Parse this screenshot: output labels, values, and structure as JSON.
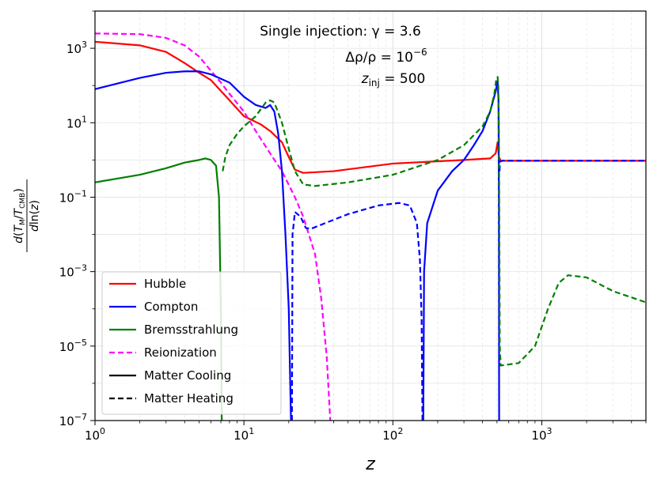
{
  "chart_data": {
    "type": "line",
    "xscale": "log",
    "yscale": "log",
    "xlim": [
      1,
      5000
    ],
    "ylim": [
      1e-07,
      10000
    ],
    "xlabel": "z",
    "ylabel": "d(T_M/T_CMB) / d ln(z)",
    "x_ticks": [
      {
        "value": 1,
        "base": "10",
        "exp": "0"
      },
      {
        "value": 10,
        "base": "10",
        "exp": "1"
      },
      {
        "value": 100,
        "base": "10",
        "exp": "2"
      },
      {
        "value": 1000,
        "base": "10",
        "exp": "3"
      }
    ],
    "y_ticks": [
      {
        "value": 1e-07,
        "base": "10",
        "exp": "−7"
      },
      {
        "value": 1e-05,
        "base": "10",
        "exp": "−5"
      },
      {
        "value": 0.001,
        "base": "10",
        "exp": "−3"
      },
      {
        "value": 0.1,
        "base": "10",
        "exp": "−1"
      },
      {
        "value": 10,
        "base": "10",
        "exp": "1"
      },
      {
        "value": 1000,
        "base": "10",
        "exp": "3"
      }
    ],
    "annotations": {
      "line1": "Single injection: γ = 3.6",
      "line2_a": "Δρ/ρ = 10",
      "line2_exp": "−6",
      "line3_a": "z",
      "line3_sub": "inj",
      "line3_b": " = 500"
    },
    "colors": {
      "hubble": "#ff0000",
      "compton": "#0000ff",
      "brems": "#008000",
      "reion": "#ff00ff",
      "black": "#000000"
    },
    "legend": {
      "location": "lower-left",
      "entries": [
        {
          "label": "Hubble",
          "color": "#ff0000",
          "style": "solid"
        },
        {
          "label": "Compton",
          "color": "#0000ff",
          "style": "solid"
        },
        {
          "label": "Bremsstrahlung",
          "color": "#008000",
          "style": "solid"
        },
        {
          "label": "Reionization",
          "color": "#ff00ff",
          "style": "dashed"
        },
        {
          "label": "Matter Cooling",
          "color": "#000000",
          "style": "solid"
        },
        {
          "label": "Matter Heating",
          "color": "#000000",
          "style": "dashed"
        }
      ]
    },
    "series": [
      {
        "name": "Hubble",
        "color": "#ff0000",
        "dash": false,
        "points": [
          [
            1,
            1500
          ],
          [
            2,
            1200
          ],
          [
            3,
            800
          ],
          [
            4,
            400
          ],
          [
            5,
            220
          ],
          [
            6,
            140
          ],
          [
            8,
            40
          ],
          [
            10,
            15
          ],
          [
            13,
            9
          ],
          [
            15,
            6
          ],
          [
            18,
            3
          ],
          [
            20,
            1.2
          ],
          [
            22,
            0.55
          ],
          [
            25,
            0.45
          ],
          [
            40,
            0.5
          ],
          [
            100,
            0.8
          ],
          [
            300,
            1.0
          ],
          [
            450,
            1.1
          ],
          [
            490,
            1.5
          ],
          [
            505,
            3.0
          ],
          [
            515,
            1.2
          ],
          [
            530,
            0.95
          ],
          [
            5000,
            0.95
          ]
        ]
      },
      {
        "name": "Reionization",
        "color": "#ff00ff",
        "dash": true,
        "points": [
          [
            1,
            2500
          ],
          [
            2,
            2400
          ],
          [
            3,
            1900
          ],
          [
            4,
            1200
          ],
          [
            5,
            600
          ],
          [
            6,
            250
          ],
          [
            7,
            120
          ],
          [
            8,
            60
          ],
          [
            10,
            20
          ],
          [
            12,
            6
          ],
          [
            15,
            1.5
          ],
          [
            18,
            0.5
          ],
          [
            22,
            0.1
          ],
          [
            25,
            0.03
          ],
          [
            30,
            0.003
          ],
          [
            33,
            0.0002
          ],
          [
            36,
            5e-06
          ],
          [
            38,
            1e-07
          ]
        ]
      },
      {
        "name": "Compton cooling early",
        "color": "#0000ff",
        "dash": false,
        "points": [
          [
            1,
            80
          ],
          [
            2,
            160
          ],
          [
            3,
            220
          ],
          [
            4,
            240
          ],
          [
            5,
            240
          ],
          [
            6,
            200
          ],
          [
            8,
            120
          ],
          [
            10,
            50
          ],
          [
            12,
            30
          ],
          [
            14,
            25
          ],
          [
            15,
            30
          ],
          [
            16,
            20
          ],
          [
            17,
            5
          ],
          [
            18,
            0.5
          ],
          [
            19,
            0.01
          ],
          [
            20,
            0.0001
          ],
          [
            20.7,
            1e-07
          ]
        ]
      },
      {
        "name": "Compton heating",
        "color": "#0000ff",
        "dash": true,
        "points": [
          [
            21,
            1e-07
          ],
          [
            21.2,
            0.01
          ],
          [
            22,
            0.04
          ],
          [
            24,
            0.03
          ],
          [
            26,
            0.015
          ],
          [
            28,
            0.014
          ],
          [
            35,
            0.02
          ],
          [
            50,
            0.035
          ],
          [
            80,
            0.06
          ],
          [
            110,
            0.07
          ],
          [
            130,
            0.06
          ],
          [
            145,
            0.02
          ],
          [
            152,
            0.002
          ],
          [
            156,
            5e-05
          ],
          [
            158,
            1e-07
          ]
        ]
      },
      {
        "name": "Compton cooling late",
        "color": "#0000ff",
        "dash": false,
        "points": [
          [
            160,
            1e-07
          ],
          [
            162,
            0.001
          ],
          [
            170,
            0.02
          ],
          [
            200,
            0.15
          ],
          [
            250,
            0.5
          ],
          [
            300,
            1.0
          ],
          [
            350,
            2.5
          ],
          [
            400,
            6
          ],
          [
            450,
            20
          ],
          [
            490,
            70
          ],
          [
            505,
            130
          ],
          [
            512,
            40
          ],
          [
            515,
            0.1
          ],
          [
            517,
            1e-07
          ]
        ]
      },
      {
        "name": "Compton heating tail",
        "color": "#0000ff",
        "dash": true,
        "points": [
          [
            520,
            0.5
          ],
          [
            525,
            0.9
          ],
          [
            540,
            0.95
          ],
          [
            5000,
            0.95
          ]
        ]
      },
      {
        "name": "Bremsstrahlung cooling",
        "color": "#008000",
        "dash": false,
        "points": [
          [
            1,
            0.25
          ],
          [
            2,
            0.4
          ],
          [
            3,
            0.6
          ],
          [
            4,
            0.85
          ],
          [
            5,
            1.0
          ],
          [
            5.5,
            1.1
          ],
          [
            6,
            1.0
          ],
          [
            6.5,
            0.7
          ],
          [
            6.8,
            0.1
          ],
          [
            7,
            0.0001
          ],
          [
            7.1,
            1e-07
          ]
        ]
      },
      {
        "name": "Bremsstrahlung heating",
        "color": "#008000",
        "dash": true,
        "points": [
          [
            7.2,
            0.5
          ],
          [
            7.5,
            1.2
          ],
          [
            8,
            2.5
          ],
          [
            9,
            5
          ],
          [
            10,
            8
          ],
          [
            12,
            15
          ],
          [
            14,
            35
          ],
          [
            15,
            40
          ],
          [
            16,
            35
          ],
          [
            18,
            10
          ],
          [
            20,
            2
          ],
          [
            22,
            0.5
          ],
          [
            25,
            0.22
          ],
          [
            30,
            0.2
          ],
          [
            50,
            0.25
          ],
          [
            100,
            0.4
          ],
          [
            200,
            1.0
          ],
          [
            300,
            2.5
          ],
          [
            400,
            8
          ],
          [
            450,
            20
          ],
          [
            480,
            60
          ],
          [
            495,
            150
          ],
          [
            505,
            170
          ],
          [
            510,
            100
          ],
          [
            515,
            10
          ],
          [
            520,
            0.001
          ],
          [
            522,
            1e-05
          ],
          [
            530,
            3e-06
          ],
          [
            700,
            3.5e-06
          ],
          [
            900,
            1e-05
          ],
          [
            1100,
            0.0001
          ],
          [
            1300,
            0.0005
          ],
          [
            1500,
            0.0008
          ],
          [
            2000,
            0.0007
          ],
          [
            3000,
            0.0003
          ],
          [
            5000,
            0.00015
          ]
        ]
      }
    ]
  }
}
